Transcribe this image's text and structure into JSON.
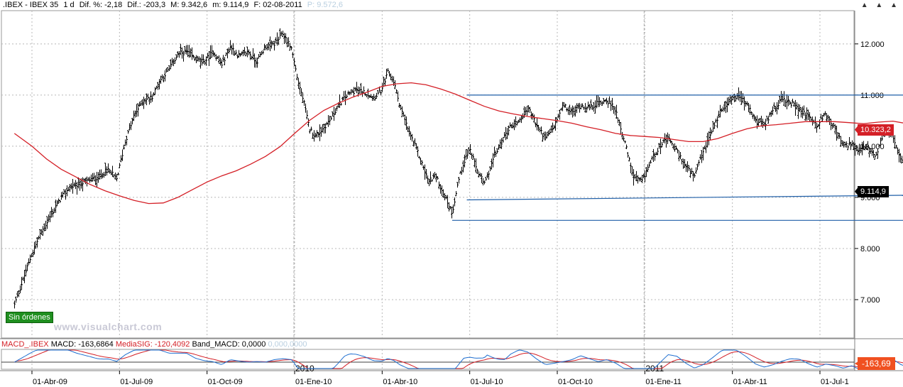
{
  "header": {
    "symbol": ".IBEX - IBEX 35",
    "period": "1 d",
    "dif_pct": "Dif. %: -2,18",
    "dif": "Dif.: -203,3",
    "max": "M: 9.342,6",
    "min": "m: 9.114,9",
    "date": "F: 02-08-2011",
    "p": "P: 9.572,6"
  },
  "window_controls": "▲ ▲ ▲",
  "badge_label": "Sin órdenes",
  "watermark": "www.visualchart.com",
  "indicator": {
    "name": "MACD_.IBEX",
    "macd": "MACD: -163,6864",
    "signal": "MediaSIG: -120,4092",
    "band": "Band_MACD: 0,0000",
    "extra": "0,000,0000",
    "last_value": "-163,69"
  },
  "colors": {
    "price_bars": "#000000",
    "moving_average": "#d41f26",
    "trendlines": "#1f5fa8",
    "macd_line": "#1f6fd0",
    "signal_line": "#d41f26",
    "last_price_bg": "#000000",
    "ma_value_bg": "#d41f26",
    "badge": "#1f8f1f"
  },
  "chart_data": {
    "type": "ohlc",
    "ylim": [
      6250,
      12650
    ],
    "y_ticks": [
      {
        "v": 7000,
        "label": "7.000"
      },
      {
        "v": 8000,
        "label": "8.000"
      },
      {
        "v": 9000,
        "label": "9.000"
      },
      {
        "v": 10000,
        "label": "10.000"
      },
      {
        "v": 11000,
        "label": "11.000"
      },
      {
        "v": 12000,
        "label": "12.000"
      }
    ],
    "x_ticks": [
      "01-Abr-09",
      "01-Jul-09",
      "01-Oct-09",
      "01-Ene-10",
      "01-Abr-10",
      "01-Jul-10",
      "01-Oct-10",
      "01-Ene-11",
      "01-Abr-11",
      "01-Jul-1"
    ],
    "x_tick_months": [
      0,
      3,
      6,
      9,
      12,
      15,
      18,
      21,
      24,
      27
    ],
    "year_labels": [
      {
        "label": "2010",
        "month": 9
      },
      {
        "label": "2011",
        "month": 21
      }
    ],
    "month_range": [
      -0.7,
      28.3
    ],
    "close_path": [
      [
        -0.6,
        6900
      ],
      [
        -0.3,
        7400
      ],
      [
        0.0,
        7900
      ],
      [
        0.3,
        8300
      ],
      [
        0.6,
        8600
      ],
      [
        1.0,
        9000
      ],
      [
        1.3,
        9200
      ],
      [
        1.6,
        9250
      ],
      [
        2.0,
        9350
      ],
      [
        2.3,
        9400
      ],
      [
        2.6,
        9550
      ],
      [
        2.9,
        9350
      ],
      [
        3.2,
        10100
      ],
      [
        3.5,
        10600
      ],
      [
        3.8,
        10900
      ],
      [
        4.1,
        10950
      ],
      [
        4.4,
        11300
      ],
      [
        4.7,
        11500
      ],
      [
        5.0,
        11800
      ],
      [
        5.3,
        11850
      ],
      [
        5.6,
        11700
      ],
      [
        5.9,
        11650
      ],
      [
        6.2,
        11850
      ],
      [
        6.5,
        11600
      ],
      [
        6.8,
        11950
      ],
      [
        7.1,
        11750
      ],
      [
        7.4,
        11850
      ],
      [
        7.7,
        11650
      ],
      [
        8.0,
        11950
      ],
      [
        8.3,
        12000
      ],
      [
        8.6,
        12200
      ],
      [
        8.9,
        11900
      ],
      [
        9.1,
        11300
      ],
      [
        9.3,
        10900
      ],
      [
        9.5,
        10350
      ],
      [
        9.7,
        10200
      ],
      [
        9.9,
        10300
      ],
      [
        10.2,
        10500
      ],
      [
        10.5,
        10800
      ],
      [
        10.8,
        11000
      ],
      [
        11.1,
        11100
      ],
      [
        11.4,
        11050
      ],
      [
        11.7,
        10950
      ],
      [
        12.0,
        11100
      ],
      [
        12.2,
        11450
      ],
      [
        12.4,
        11250
      ],
      [
        12.6,
        10800
      ],
      [
        12.9,
        10300
      ],
      [
        13.2,
        9900
      ],
      [
        13.4,
        9600
      ],
      [
        13.6,
        9300
      ],
      [
        13.8,
        9450
      ],
      [
        14.0,
        9200
      ],
      [
        14.2,
        8950
      ],
      [
        14.4,
        8700
      ],
      [
        14.6,
        9300
      ],
      [
        14.8,
        9700
      ],
      [
        15.0,
        9950
      ],
      [
        15.2,
        9600
      ],
      [
        15.5,
        9250
      ],
      [
        15.8,
        9750
      ],
      [
        16.1,
        10100
      ],
      [
        16.4,
        10400
      ],
      [
        16.7,
        10500
      ],
      [
        17.0,
        10750
      ],
      [
        17.3,
        10400
      ],
      [
        17.6,
        10150
      ],
      [
        17.9,
        10400
      ],
      [
        18.2,
        10800
      ],
      [
        18.5,
        10650
      ],
      [
        18.8,
        10800
      ],
      [
        19.1,
        10750
      ],
      [
        19.4,
        10850
      ],
      [
        19.7,
        10900
      ],
      [
        20.0,
        10700
      ],
      [
        20.3,
        10100
      ],
      [
        20.6,
        9400
      ],
      [
        20.9,
        9300
      ],
      [
        21.2,
        9700
      ],
      [
        21.5,
        10000
      ],
      [
        21.8,
        10150
      ],
      [
        22.1,
        9900
      ],
      [
        22.4,
        9600
      ],
      [
        22.7,
        9400
      ],
      [
        23.0,
        9900
      ],
      [
        23.3,
        10300
      ],
      [
        23.6,
        10700
      ],
      [
        23.9,
        10900
      ],
      [
        24.2,
        11000
      ],
      [
        24.5,
        10800
      ],
      [
        24.8,
        10500
      ],
      [
        25.1,
        10400
      ],
      [
        25.4,
        10750
      ],
      [
        25.7,
        10900
      ],
      [
        26.0,
        10850
      ],
      [
        26.3,
        10700
      ],
      [
        26.6,
        10600
      ],
      [
        26.9,
        10400
      ],
      [
        27.2,
        10650
      ],
      [
        27.5,
        10350
      ],
      [
        27.8,
        10000
      ],
      [
        28.1,
        10050
      ],
      [
        28.3,
        9900
      ],
      [
        28.6,
        10000
      ],
      [
        28.9,
        9750
      ],
      [
        29.2,
        10300
      ],
      [
        29.5,
        10200
      ],
      [
        29.8,
        9700
      ],
      [
        30.1,
        9350
      ],
      [
        30.4,
        9700
      ],
      [
        30.7,
        9600
      ],
      [
        31.0,
        9300
      ],
      [
        31.2,
        9114.9
      ]
    ],
    "moving_average": [
      [
        -0.6,
        10250
      ],
      [
        0.0,
        10000
      ],
      [
        0.5,
        9750
      ],
      [
        1.0,
        9550
      ],
      [
        1.5,
        9400
      ],
      [
        2.0,
        9250
      ],
      [
        2.5,
        9130
      ],
      [
        3.0,
        9030
      ],
      [
        3.5,
        8940
      ],
      [
        4.0,
        8880
      ],
      [
        4.5,
        8890
      ],
      [
        5.0,
        9000
      ],
      [
        5.5,
        9150
      ],
      [
        6.0,
        9300
      ],
      [
        6.5,
        9420
      ],
      [
        7.0,
        9520
      ],
      [
        7.5,
        9650
      ],
      [
        8.0,
        9800
      ],
      [
        8.5,
        9990
      ],
      [
        9.0,
        10250
      ],
      [
        9.5,
        10500
      ],
      [
        10.0,
        10700
      ],
      [
        10.5,
        10840
      ],
      [
        11.0,
        10960
      ],
      [
        11.5,
        11060
      ],
      [
        12.0,
        11170
      ],
      [
        12.5,
        11220
      ],
      [
        13.0,
        11240
      ],
      [
        13.5,
        11200
      ],
      [
        14.0,
        11120
      ],
      [
        14.5,
        11020
      ],
      [
        15.0,
        10900
      ],
      [
        15.5,
        10780
      ],
      [
        16.0,
        10690
      ],
      [
        16.5,
        10630
      ],
      [
        17.0,
        10580
      ],
      [
        17.5,
        10540
      ],
      [
        18.0,
        10500
      ],
      [
        18.5,
        10450
      ],
      [
        19.0,
        10380
      ],
      [
        19.5,
        10320
      ],
      [
        20.0,
        10250
      ],
      [
        20.5,
        10210
      ],
      [
        21.0,
        10190
      ],
      [
        21.5,
        10170
      ],
      [
        22.0,
        10130
      ],
      [
        22.5,
        10090
      ],
      [
        23.0,
        10090
      ],
      [
        23.5,
        10150
      ],
      [
        24.0,
        10250
      ],
      [
        24.5,
        10340
      ],
      [
        25.0,
        10400
      ],
      [
        25.5,
        10420
      ],
      [
        26.0,
        10450
      ],
      [
        26.5,
        10480
      ],
      [
        27.0,
        10480
      ],
      [
        27.5,
        10480
      ],
      [
        28.0,
        10460
      ],
      [
        28.5,
        10440
      ],
      [
        29.0,
        10470
      ],
      [
        29.5,
        10490
      ],
      [
        30.0,
        10440
      ],
      [
        30.5,
        10380
      ],
      [
        31.3,
        10323.2
      ]
    ],
    "ma_last_label": "10.323,2",
    "last_price_label": "9.114,9",
    "last_price": 9114.9,
    "ma_last": 10323.2,
    "trendlines": [
      {
        "from": [
          14.9,
          11000
        ],
        "to": [
          31.4,
          11000
        ]
      },
      {
        "from": [
          14.9,
          8950
        ],
        "to": [
          31.4,
          9050
        ]
      },
      {
        "from": [
          14.4,
          8550
        ],
        "to": [
          31.4,
          8550
        ]
      }
    ]
  }
}
